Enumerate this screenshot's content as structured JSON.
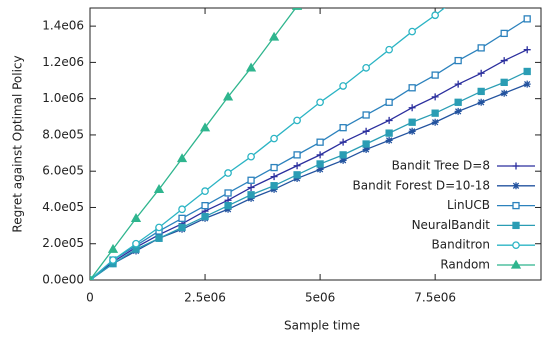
{
  "chart_data": {
    "type": "line",
    "x_label": "Sample time",
    "y_label": "Regret against Optimal Policy",
    "x": [
      0,
      500000,
      1000000,
      1500000,
      2000000,
      2500000,
      3000000,
      3500000,
      4000000,
      4500000,
      5000000,
      5500000,
      6000000,
      6500000,
      7000000,
      7500000,
      8000000,
      8500000,
      9000000,
      9500000
    ],
    "xlim": [
      0,
      9800000
    ],
    "ylim": [
      0,
      1500000
    ],
    "xticks": [
      0,
      {
        "value": 2500000,
        "label": "2.5e06"
      },
      {
        "value": 5000000,
        "label": "5e06"
      },
      {
        "value": 7500000,
        "label": "7.5e06"
      }
    ],
    "yticks": [
      {
        "value": 0,
        "label": "0.0e00"
      },
      {
        "value": 200000,
        "label": "2.0e05"
      },
      {
        "value": 400000,
        "label": "4.0e05"
      },
      {
        "value": 600000,
        "label": "6.0e05"
      },
      {
        "value": 800000,
        "label": "8.0e05"
      },
      {
        "value": 1000000,
        "label": "1.0e06"
      },
      {
        "value": 1200000,
        "label": "1.2e06"
      },
      {
        "value": 1400000,
        "label": "1.4e06"
      }
    ],
    "legend": "lower right",
    "series": [
      {
        "name": "Bandit Tree D=8",
        "color": "#2b2f9e",
        "marker": "plus",
        "values": [
          0,
          100000,
          180000,
          250000,
          310000,
          380000,
          440000,
          510000,
          570000,
          630000,
          690000,
          760000,
          820000,
          880000,
          950000,
          1010000,
          1080000,
          1140000,
          1210000,
          1270000
        ]
      },
      {
        "name": "Bandit Forest D=10-18",
        "color": "#23539f",
        "marker": "star",
        "values": [
          0,
          90000,
          160000,
          230000,
          280000,
          340000,
          390000,
          450000,
          500000,
          560000,
          610000,
          660000,
          720000,
          770000,
          820000,
          870000,
          930000,
          980000,
          1030000,
          1080000
        ]
      },
      {
        "name": "LinUCB",
        "color": "#2c82bd",
        "marker": "square-open",
        "values": [
          0,
          110000,
          190000,
          270000,
          340000,
          410000,
          480000,
          550000,
          620000,
          690000,
          760000,
          840000,
          910000,
          980000,
          1060000,
          1130000,
          1210000,
          1280000,
          1360000,
          1440000
        ]
      },
      {
        "name": "NeuralBandit",
        "color": "#2a9db4",
        "marker": "square",
        "values": [
          0,
          90000,
          170000,
          230000,
          290000,
          350000,
          410000,
          470000,
          520000,
          580000,
          640000,
          690000,
          750000,
          810000,
          870000,
          920000,
          980000,
          1040000,
          1090000,
          1150000
        ]
      },
      {
        "name": "Banditron",
        "color": "#2bb4c4",
        "marker": "circle-open",
        "values": [
          0,
          110000,
          200000,
          290000,
          390000,
          490000,
          590000,
          680000,
          780000,
          880000,
          980000,
          1070000,
          1170000,
          1270000,
          1370000,
          1460000,
          1560000,
          null,
          null,
          null
        ]
      },
      {
        "name": "Random",
        "color": "#2fb58e",
        "marker": "triangle",
        "values": [
          0,
          170000,
          340000,
          500000,
          670000,
          840000,
          1010000,
          1170000,
          1340000,
          1510000,
          null,
          null,
          null,
          null,
          null,
          null,
          null,
          null,
          null,
          null
        ]
      }
    ]
  }
}
